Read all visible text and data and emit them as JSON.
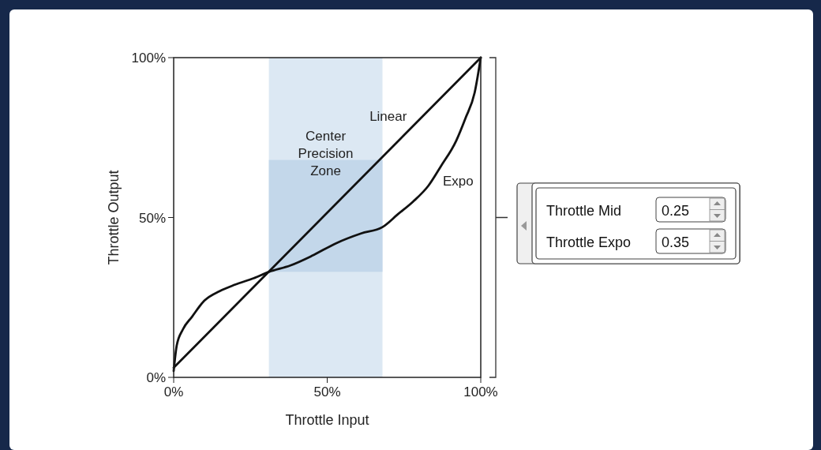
{
  "chart_data": {
    "type": "line",
    "xlabel": "Throttle Input",
    "ylabel": "Throttle Output",
    "xlim": [
      0,
      100
    ],
    "ylim": [
      0,
      100
    ],
    "xticks": [
      {
        "value": 0,
        "label": "0%"
      },
      {
        "value": 50,
        "label": "50%"
      },
      {
        "value": 100,
        "label": "100%"
      }
    ],
    "yticks": [
      {
        "value": 0,
        "label": "0%"
      },
      {
        "value": 50,
        "label": "50%"
      },
      {
        "value": 100,
        "label": "100%"
      }
    ],
    "series": [
      {
        "name": "Linear",
        "color": "#111111",
        "x": [
          0,
          100
        ],
        "values": [
          3,
          100
        ]
      },
      {
        "name": "Expo",
        "color": "#111111",
        "x": [
          0,
          1,
          3,
          6,
          10,
          15,
          20,
          26,
          31,
          38,
          45,
          53,
          61,
          68,
          73,
          78,
          83,
          87,
          92,
          95,
          98,
          100
        ],
        "values": [
          2,
          10,
          15,
          19,
          24,
          27,
          29,
          31,
          33,
          35,
          38,
          42,
          45,
          47,
          51,
          55,
          60,
          66,
          74,
          81,
          89,
          100
        ]
      }
    ],
    "bands": [
      {
        "axis": "x",
        "from": 31,
        "to": 68,
        "label": "Center Precision Zone",
        "color": "#dce8f3"
      },
      {
        "axis": "y",
        "from": 33,
        "to": 68,
        "color": "#c3d7ea"
      }
    ],
    "annotations": [
      "Throttle Mid",
      "0.25",
      "Throttle Expo",
      "0.35"
    ],
    "line_style": "solid"
  }
}
